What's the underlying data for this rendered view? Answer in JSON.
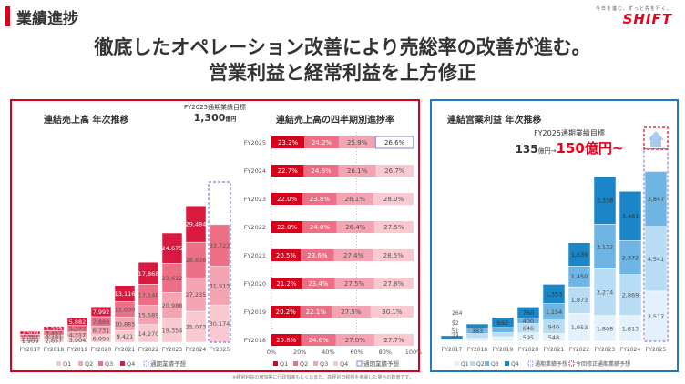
{
  "header": {
    "title": "業績進捗",
    "logo_tagline": "今日を進む、ずっと先を行く。",
    "logo_name": "SHIFT"
  },
  "headline": {
    "line1": "徹底したオペレーション改善により売総率の改善が進む。",
    "line2": "営業利益と経常利益を上方修正"
  },
  "colors": {
    "red_accent": "#d9001b",
    "blue_accent": "#1e78c8",
    "sales_q1": "#f9c9d1",
    "sales_q2": "#f3a3b1",
    "sales_q3": "#ec6f86",
    "sales_q4": "#d9193f",
    "op_q1": "#e3f1fb",
    "op_q2": "#b8dcf3",
    "op_q3": "#6fb5e3",
    "op_q4": "#1a86c7",
    "forecast_outline": "#8a7fd6"
  },
  "sales_target": {
    "label": "FY2025通期業績目標",
    "value": "1,300",
    "unit": "億円"
  },
  "op_target": {
    "label": "FY2025通期業績目標",
    "from_value": "135",
    "from_unit": "億円→",
    "to_value": "150億円~"
  },
  "footnote": "※経常利益の増加等に行政指導もしくはまた、高経別日税額を考慮した場合の数値です。",
  "chart_data": [
    {
      "type": "bar",
      "stacked": true,
      "title": "連結売上高 年次推移",
      "categories": [
        "FY2017",
        "FY2018",
        "FY2019",
        "FY2020",
        "FY2021",
        "FY2022",
        "FY2023",
        "FY2024",
        "FY2025"
      ],
      "series": [
        {
          "name": "Q1",
          "values": [
            1909,
            2657,
            3904,
            6098,
            9421,
            14270,
            19354,
            25073,
            30174
          ]
        },
        {
          "name": "Q2",
          "values": [
            2080,
            3181,
            4317,
            6731,
            10865,
            15589,
            20988,
            27235,
            31513
          ]
        },
        {
          "name": "Q3",
          "values": [
            2361,
            3457,
            5377,
            7889,
            12600,
            17146,
            23612,
            28838,
            33723
          ]
        },
        {
          "name": "Q4",
          "values": [
            2509,
            3539,
            5882,
            7992,
            13116,
            17868,
            24675,
            29484,
            null
          ]
        }
      ],
      "labels": {
        "FY2017": [
          "1,909",
          "2,080",
          "2,361",
          "2,509"
        ],
        "FY2018": [
          "2,657",
          "3,181",
          "3,457",
          "3,539"
        ],
        "FY2019": [
          "3,904",
          "4,317",
          "5,377",
          "5,882"
        ],
        "FY2020": [
          "6,098",
          "6,731",
          "7,889",
          "7,992"
        ],
        "FY2021": [
          "9,421",
          "10,865",
          "12,600",
          "13,116"
        ],
        "FY2022": [
          "14,270",
          "15,589",
          "17,146",
          "17,868"
        ],
        "FY2023": [
          "19,354",
          "20,988",
          "23,612",
          "24,675"
        ],
        "FY2024": [
          "25,073",
          "27,235",
          "28,838",
          "29,484"
        ],
        "FY2025": [
          "30,174",
          "31,513",
          "33,723",
          ""
        ]
      },
      "forecast_category": "FY2025",
      "forecast_total": 130000,
      "legend": [
        "Q1",
        "Q2",
        "Q3",
        "Q4",
        "通期業績予想"
      ],
      "legend_position": "bottom",
      "ylim": [
        0,
        130000
      ]
    },
    {
      "type": "bar",
      "stacked": true,
      "horizontal": true,
      "title": "連結売上高の四半期別進捗率",
      "categories": [
        "FY2025",
        "FY2024",
        "FY2023",
        "FY2022",
        "FY2021",
        "FY2020",
        "FY2019",
        "FY2018"
      ],
      "series": [
        {
          "name": "Q1",
          "values": [
            23.2,
            22.7,
            22.0,
            22.0,
            20.5,
            21.2,
            20.2,
            20.8
          ]
        },
        {
          "name": "Q2",
          "values": [
            24.2,
            24.6,
            23.8,
            24.0,
            23.6,
            23.4,
            22.1,
            24.6
          ]
        },
        {
          "name": "Q3",
          "values": [
            25.9,
            26.1,
            26.1,
            26.4,
            27.4,
            27.5,
            27.5,
            27.0
          ]
        },
        {
          "name": "Q4",
          "values": [
            26.6,
            26.7,
            28.0,
            27.5,
            28.5,
            27.8,
            30.1,
            27.7
          ]
        }
      ],
      "xticks": [
        "0%",
        "20%",
        "40%",
        "60%",
        "80%",
        "100%"
      ],
      "xlim": [
        0,
        100
      ],
      "forecast_category": "FY2025",
      "legend": [
        "Q1",
        "Q2",
        "Q3",
        "Q4",
        "通期業績予想"
      ],
      "legend_position": "bottom"
    },
    {
      "type": "bar",
      "stacked": true,
      "title": "連結営業利益 年次推移",
      "categories": [
        "FY2017",
        "FY2018",
        "FY2019",
        "FY2020",
        "FY2021",
        "FY2022",
        "FY2023",
        "FY2024",
        "FY2025"
      ],
      "series": [
        {
          "name": "Q1",
          "values": [
            23,
            212,
            318,
            595,
            548,
            1953,
            1808,
            1813,
            3517
          ]
        },
        {
          "name": "Q2",
          "values": [
            51,
            319,
            288,
            646,
            940,
            1873,
            3274,
            2869,
            4541
          ]
        },
        {
          "name": "Q3",
          "values": [
            52,
            383,
            363,
            400,
            1154,
            1450,
            3132,
            2372,
            3847
          ]
        },
        {
          "name": "Q4",
          "values": [
            264,
            296,
            692,
            760,
            1353,
            1639,
            3338,
            3461,
            null
          ]
        }
      ],
      "labels": {
        "FY2017": [
          "23",
          "51",
          "52",
          "264"
        ],
        "FY2018": [
          "212",
          "319",
          "383",
          "296"
        ],
        "FY2019": [
          "318",
          "288",
          "363",
          "692"
        ],
        "FY2020": [
          "595",
          "646",
          "400",
          "760"
        ],
        "FY2021": [
          "548",
          "940",
          "1,154",
          "1,353"
        ],
        "FY2022": [
          "1,953",
          "1,873",
          "1,450",
          "1,639"
        ],
        "FY2023": [
          "1,808",
          "3,274",
          "3,132",
          "3,338"
        ],
        "FY2024": [
          "1,813",
          "2,869",
          "2,372",
          "3,461"
        ],
        "FY2025": [
          "3,517",
          "4,541",
          "3,847",
          ""
        ]
      },
      "forecast_category": "FY2025",
      "forecast_total": 13500,
      "revised_forecast_total": 15000,
      "legend": [
        "Q1",
        "Q2",
        "Q3",
        "Q4",
        "通期業績予想",
        "今回修正通期業績予想"
      ],
      "legend_position": "bottom",
      "ylim": [
        0,
        15000
      ]
    }
  ]
}
